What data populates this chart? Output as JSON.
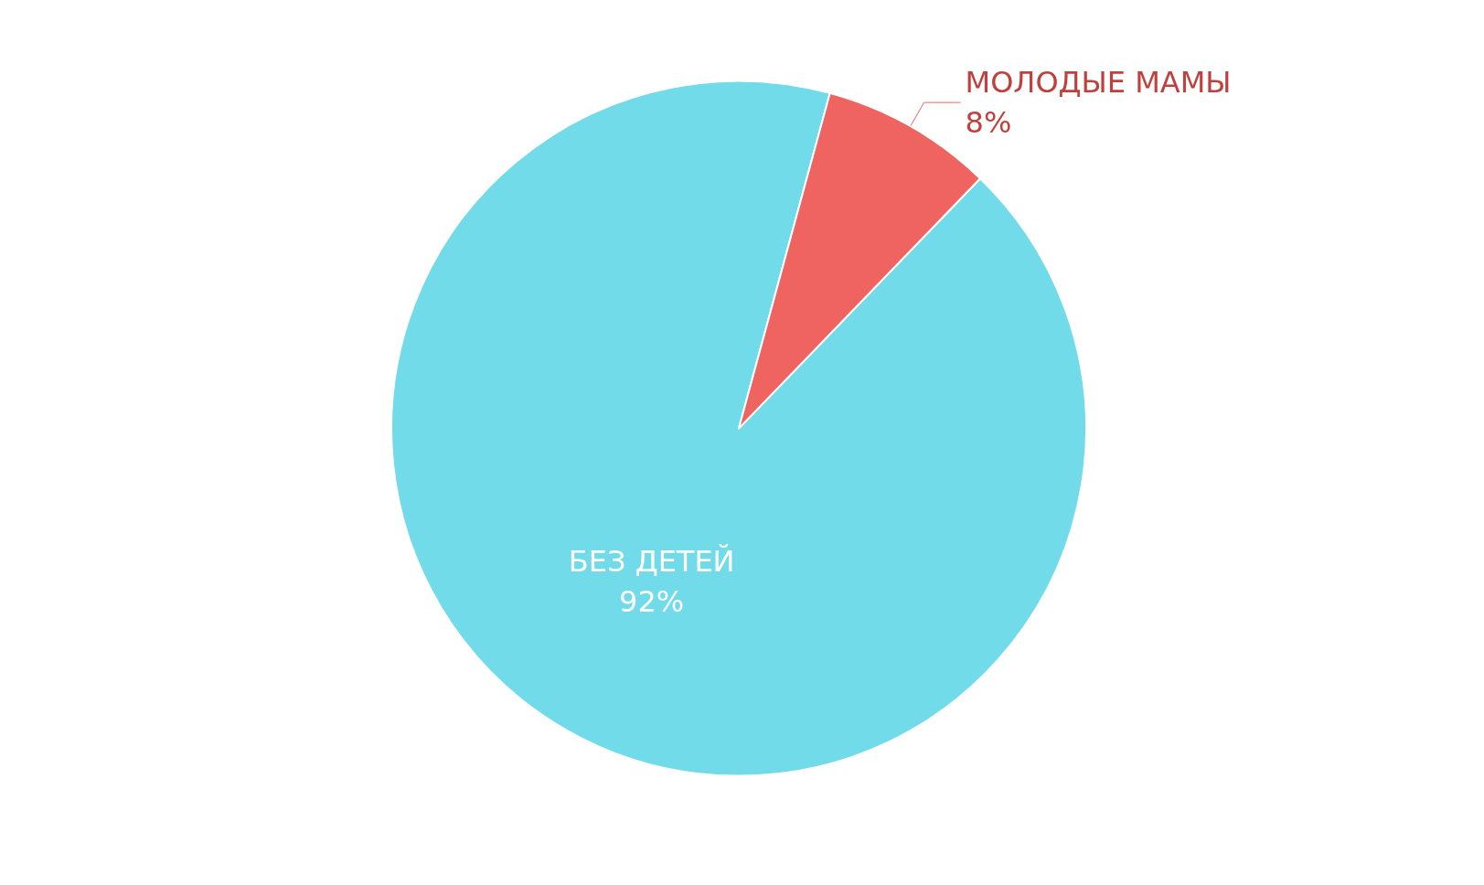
{
  "chart_data": {
    "type": "pie",
    "categories": [
      "БЕЗ ДЕТЕЙ",
      "МОЛОДЫЕ МАМЫ"
    ],
    "values": [
      92,
      8
    ],
    "colors": [
      "#72dbe9",
      "#ef6461"
    ],
    "value_labels": [
      "92%",
      "8%"
    ]
  }
}
